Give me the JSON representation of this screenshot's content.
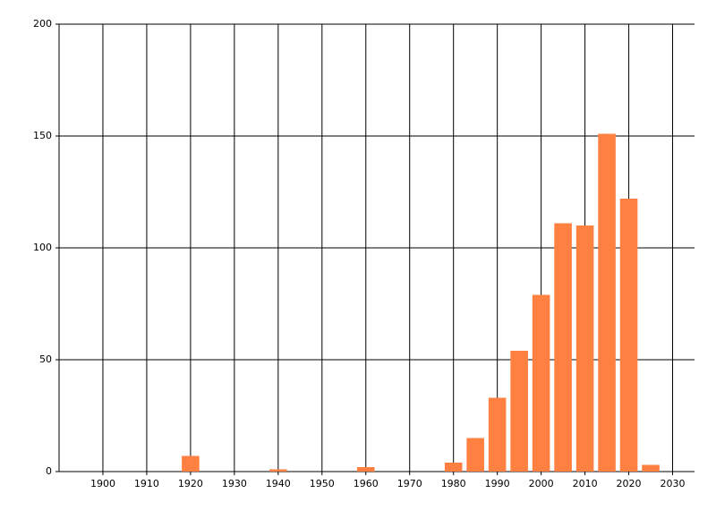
{
  "chart_data": {
    "type": "bar",
    "x": [
      1920,
      1940,
      1960,
      1980,
      1985,
      1990,
      1995,
      2000,
      2005,
      2010,
      2015,
      2020,
      2025
    ],
    "values": [
      7,
      1,
      2,
      4,
      15,
      33,
      54,
      79,
      111,
      110,
      151,
      122,
      3
    ],
    "color": "#ff8040",
    "xlim": [
      1890,
      2035
    ],
    "xticks": [
      1900,
      1910,
      1920,
      1930,
      1940,
      1950,
      1960,
      1970,
      1980,
      1990,
      2000,
      2010,
      2020,
      2030
    ],
    "ylim": [
      0,
      200
    ],
    "yticks": [
      0,
      50,
      100,
      150,
      200
    ],
    "grid": true
  }
}
